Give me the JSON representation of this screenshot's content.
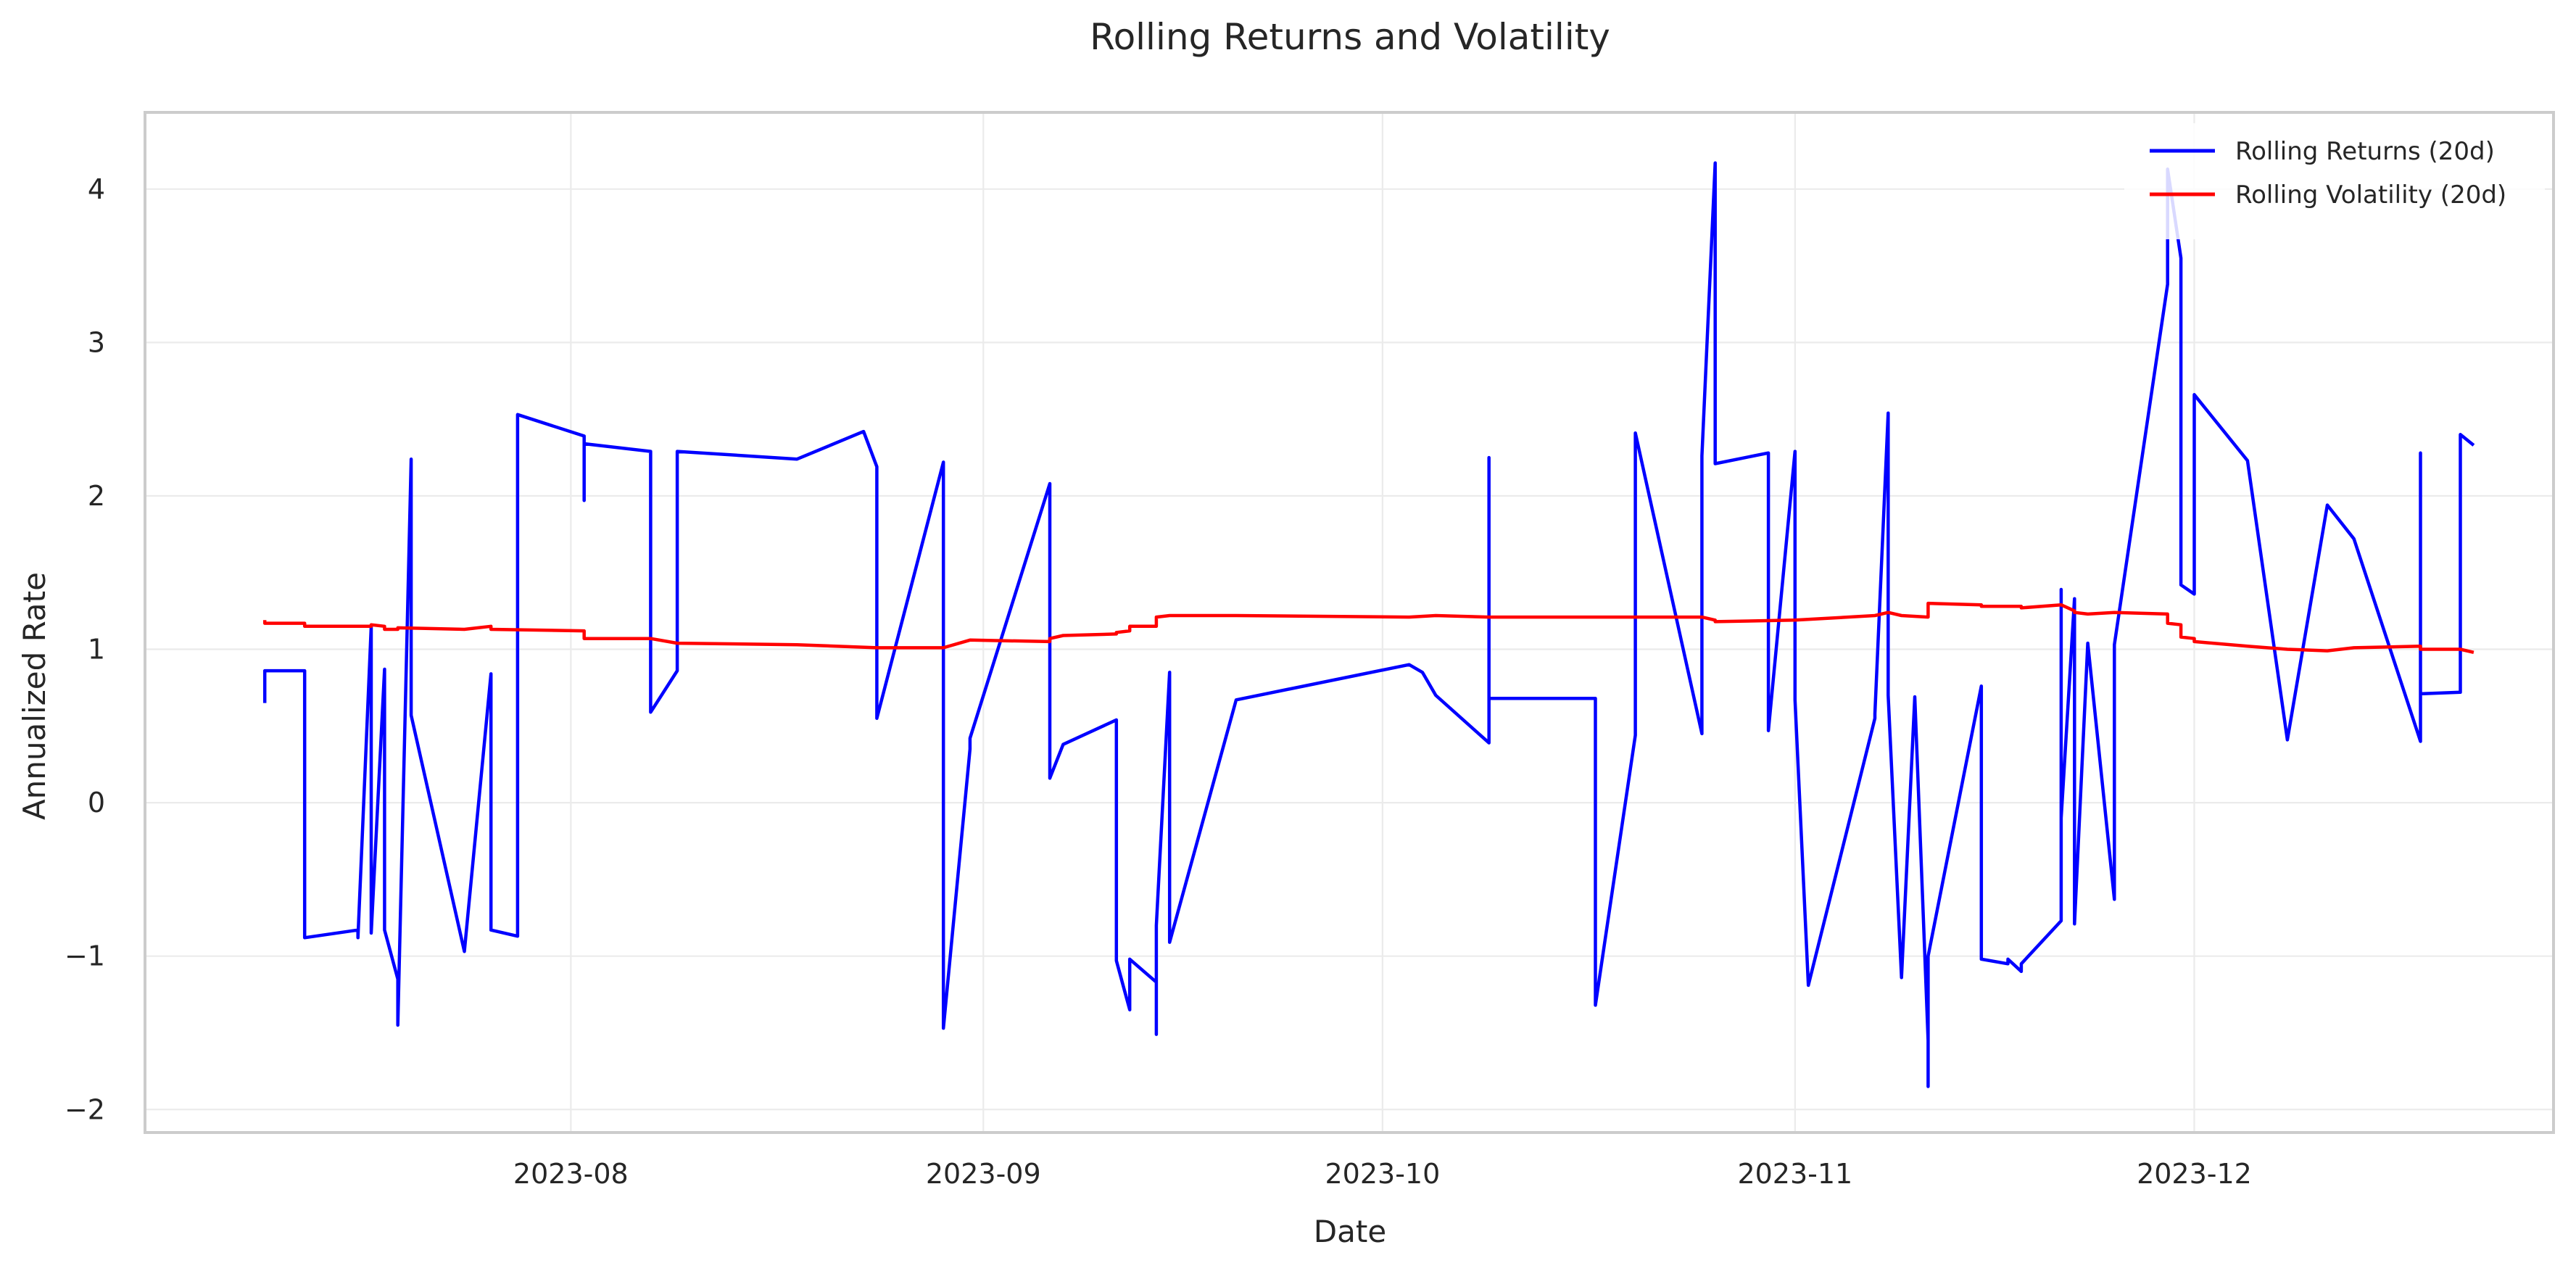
{
  "chart_data": {
    "type": "line",
    "title": "Rolling Returns and Volatility",
    "xlabel": "Date",
    "ylabel": "Annualized Rate",
    "xlim": [
      "2023-06-30",
      "2023-12-28"
    ],
    "ylim": [
      -2.15,
      4.5
    ],
    "x_ticks": [
      {
        "date": "2023-08-01",
        "label": "2023-08"
      },
      {
        "date": "2023-09-01",
        "label": "2023-09"
      },
      {
        "date": "2023-10-01",
        "label": "2023-10"
      },
      {
        "date": "2023-11-01",
        "label": "2023-11"
      },
      {
        "date": "2023-12-01",
        "label": "2023-12"
      }
    ],
    "y_ticks": [
      {
        "value": -2,
        "label": "−2"
      },
      {
        "value": -1,
        "label": "−1"
      },
      {
        "value": 0,
        "label": "0"
      },
      {
        "value": 1,
        "label": "1"
      },
      {
        "value": 2,
        "label": "2"
      },
      {
        "value": 3,
        "label": "3"
      },
      {
        "value": 4,
        "label": "4"
      }
    ],
    "grid": true,
    "legend": "top-right",
    "series": [
      {
        "name": "Rolling Returns (20d)",
        "color": "#0000ff",
        "points": [
          [
            "2023-07-09",
            0.65
          ],
          [
            "2023-07-09",
            0.86
          ],
          [
            "2023-07-12",
            0.86
          ],
          [
            "2023-07-12",
            -0.88
          ],
          [
            "2023-07-16",
            -0.83
          ],
          [
            "2023-07-16",
            -0.88
          ],
          [
            "2023-07-17",
            1.15
          ],
          [
            "2023-07-17",
            -0.85
          ],
          [
            "2023-07-18",
            0.87
          ],
          [
            "2023-07-18",
            -0.83
          ],
          [
            "2023-07-19",
            -1.15
          ],
          [
            "2023-07-19",
            -1.45
          ],
          [
            "2023-07-20",
            2.24
          ],
          [
            "2023-07-20",
            0.57
          ],
          [
            "2023-07-24",
            -0.97
          ],
          [
            "2023-07-26",
            0.84
          ],
          [
            "2023-07-26",
            -0.83
          ],
          [
            "2023-07-28",
            -0.87
          ],
          [
            "2023-07-28",
            2.53
          ],
          [
            "2023-08-02",
            2.39
          ],
          [
            "2023-08-02",
            1.97
          ],
          [
            "2023-08-02",
            2.34
          ],
          [
            "2023-08-07",
            2.29
          ],
          [
            "2023-08-07",
            0.59
          ],
          [
            "2023-08-09",
            0.86
          ],
          [
            "2023-08-09",
            2.29
          ],
          [
            "2023-08-18",
            2.24
          ],
          [
            "2023-08-23",
            2.42
          ],
          [
            "2023-08-24",
            2.19
          ],
          [
            "2023-08-24",
            0.55
          ],
          [
            "2023-08-29",
            2.22
          ],
          [
            "2023-08-29",
            -1.47
          ],
          [
            "2023-08-31",
            0.35
          ],
          [
            "2023-08-31",
            0.42
          ],
          [
            "2023-09-06",
            2.08
          ],
          [
            "2023-09-06",
            0.16
          ],
          [
            "2023-09-07",
            0.38
          ],
          [
            "2023-09-11",
            0.54
          ],
          [
            "2023-09-11",
            -1.03
          ],
          [
            "2023-09-12",
            -1.35
          ],
          [
            "2023-09-12",
            -1.02
          ],
          [
            "2023-09-14",
            -1.17
          ],
          [
            "2023-09-14",
            -1.51
          ],
          [
            "2023-09-14",
            -0.8
          ],
          [
            "2023-09-15",
            0.85
          ],
          [
            "2023-09-15",
            -0.91
          ],
          [
            "2023-09-20",
            0.67
          ],
          [
            "2023-10-03",
            0.9
          ],
          [
            "2023-10-04",
            0.85
          ],
          [
            "2023-10-05",
            0.7
          ],
          [
            "2023-10-09",
            0.39
          ],
          [
            "2023-10-09",
            2.25
          ],
          [
            "2023-10-09",
            0.68
          ],
          [
            "2023-10-17",
            0.68
          ],
          [
            "2023-10-17",
            -1.32
          ],
          [
            "2023-10-20",
            0.44
          ],
          [
            "2023-10-20",
            2.41
          ],
          [
            "2023-10-25",
            0.45
          ],
          [
            "2023-10-25",
            2.26
          ],
          [
            "2023-10-26",
            4.17
          ],
          [
            "2023-10-26",
            2.21
          ],
          [
            "2023-10-30",
            2.28
          ],
          [
            "2023-10-30",
            0.47
          ],
          [
            "2023-11-01",
            2.29
          ],
          [
            "2023-11-01",
            0.67
          ],
          [
            "2023-11-02",
            -1.19
          ],
          [
            "2023-11-07",
            0.55
          ],
          [
            "2023-11-07",
            0.58
          ],
          [
            "2023-11-08",
            2.54
          ],
          [
            "2023-11-08",
            0.7
          ],
          [
            "2023-11-09",
            -1.14
          ],
          [
            "2023-11-10",
            0.69
          ],
          [
            "2023-11-11",
            -1.55
          ],
          [
            "2023-11-11",
            -1.85
          ],
          [
            "2023-11-11",
            -1.0
          ],
          [
            "2023-11-15",
            0.76
          ],
          [
            "2023-11-15",
            -1.02
          ],
          [
            "2023-11-17",
            -1.05
          ],
          [
            "2023-11-17",
            -1.02
          ],
          [
            "2023-11-18",
            -1.1
          ],
          [
            "2023-11-18",
            -1.05
          ],
          [
            "2023-11-21",
            -0.77
          ],
          [
            "2023-11-21",
            1.39
          ],
          [
            "2023-11-21",
            -0.1
          ],
          [
            "2023-11-22",
            1.33
          ],
          [
            "2023-11-22",
            -0.79
          ],
          [
            "2023-11-23",
            1.04
          ],
          [
            "2023-11-25",
            -0.63
          ],
          [
            "2023-11-25",
            1.03
          ],
          [
            "2023-11-29",
            3.38
          ],
          [
            "2023-11-29",
            4.13
          ],
          [
            "2023-11-30",
            3.55
          ],
          [
            "2023-11-30",
            2.0
          ],
          [
            "2023-11-30",
            2.76
          ],
          [
            "2023-11-30",
            1.42
          ],
          [
            "2023-12-01",
            1.36
          ],
          [
            "2023-12-01",
            2.66
          ],
          [
            "2023-12-05",
            2.23
          ],
          [
            "2023-12-08",
            0.41
          ],
          [
            "2023-12-11",
            1.94
          ],
          [
            "2023-12-13",
            1.72
          ],
          [
            "2023-12-18",
            0.4
          ],
          [
            "2023-12-18",
            2.28
          ],
          [
            "2023-12-18",
            0.71
          ],
          [
            "2023-12-21",
            0.72
          ],
          [
            "2023-12-21",
            2.4
          ],
          [
            "2023-12-22",
            2.33
          ]
        ]
      },
      {
        "name": "Rolling Volatility (20d)",
        "color": "#ff0000",
        "points": [
          [
            "2023-07-09",
            1.19
          ],
          [
            "2023-07-09",
            1.17
          ],
          [
            "2023-07-12",
            1.17
          ],
          [
            "2023-07-12",
            1.15
          ],
          [
            "2023-07-17",
            1.15
          ],
          [
            "2023-07-17",
            1.16
          ],
          [
            "2023-07-18",
            1.15
          ],
          [
            "2023-07-18",
            1.13
          ],
          [
            "2023-07-19",
            1.13
          ],
          [
            "2023-07-19",
            1.14
          ],
          [
            "2023-07-24",
            1.13
          ],
          [
            "2023-07-26",
            1.15
          ],
          [
            "2023-07-26",
            1.13
          ],
          [
            "2023-08-02",
            1.12
          ],
          [
            "2023-08-02",
            1.07
          ],
          [
            "2023-08-07",
            1.07
          ],
          [
            "2023-08-09",
            1.04
          ],
          [
            "2023-08-18",
            1.03
          ],
          [
            "2023-08-24",
            1.01
          ],
          [
            "2023-08-29",
            1.01
          ],
          [
            "2023-08-31",
            1.06
          ],
          [
            "2023-09-06",
            1.05
          ],
          [
            "2023-09-06",
            1.07
          ],
          [
            "2023-09-07",
            1.09
          ],
          [
            "2023-09-11",
            1.1
          ],
          [
            "2023-09-11",
            1.11
          ],
          [
            "2023-09-12",
            1.12
          ],
          [
            "2023-09-12",
            1.15
          ],
          [
            "2023-09-14",
            1.15
          ],
          [
            "2023-09-14",
            1.21
          ],
          [
            "2023-09-15",
            1.22
          ],
          [
            "2023-09-20",
            1.22
          ],
          [
            "2023-10-03",
            1.21
          ],
          [
            "2023-10-05",
            1.22
          ],
          [
            "2023-10-09",
            1.21
          ],
          [
            "2023-10-17",
            1.21
          ],
          [
            "2023-10-20",
            1.21
          ],
          [
            "2023-10-25",
            1.21
          ],
          [
            "2023-10-26",
            1.19
          ],
          [
            "2023-10-26",
            1.18
          ],
          [
            "2023-11-01",
            1.19
          ],
          [
            "2023-11-07",
            1.22
          ],
          [
            "2023-11-08",
            1.24
          ],
          [
            "2023-11-09",
            1.22
          ],
          [
            "2023-11-11",
            1.21
          ],
          [
            "2023-11-11",
            1.3
          ],
          [
            "2023-11-15",
            1.29
          ],
          [
            "2023-11-15",
            1.28
          ],
          [
            "2023-11-18",
            1.28
          ],
          [
            "2023-11-18",
            1.27
          ],
          [
            "2023-11-21",
            1.29
          ],
          [
            "2023-11-22",
            1.25
          ],
          [
            "2023-11-22",
            1.24
          ],
          [
            "2023-11-23",
            1.23
          ],
          [
            "2023-11-25",
            1.24
          ],
          [
            "2023-11-29",
            1.23
          ],
          [
            "2023-11-29",
            1.17
          ],
          [
            "2023-11-30",
            1.16
          ],
          [
            "2023-11-30",
            1.08
          ],
          [
            "2023-12-01",
            1.07
          ],
          [
            "2023-12-01",
            1.05
          ],
          [
            "2023-12-05",
            1.02
          ],
          [
            "2023-12-08",
            1.0
          ],
          [
            "2023-12-11",
            0.99
          ],
          [
            "2023-12-13",
            1.01
          ],
          [
            "2023-12-18",
            1.02
          ],
          [
            "2023-12-18",
            1.0
          ],
          [
            "2023-12-21",
            1.0
          ],
          [
            "2023-12-22",
            0.98
          ]
        ]
      }
    ]
  }
}
